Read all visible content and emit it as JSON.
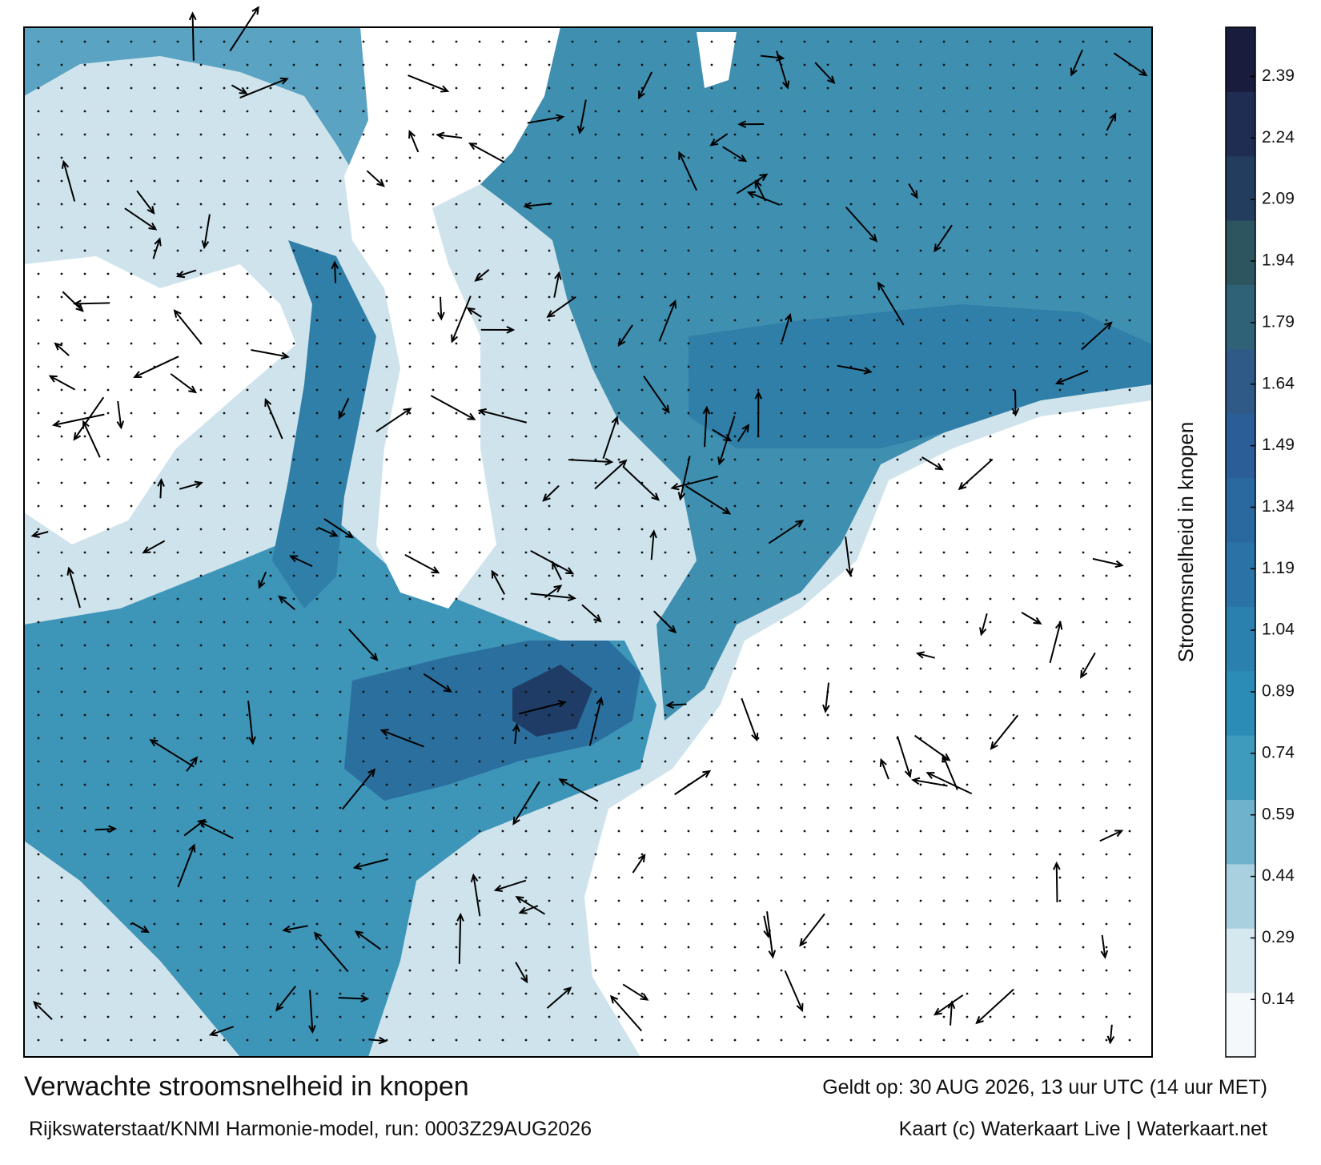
{
  "chart_data": {
    "type": "map",
    "title": "Verwachte stroomsnelheid in knopen",
    "subtitle": "Rijkswaterstaat/KNMI Harmonie-model, run: 0003Z29AUG2026",
    "valid_time": "Geldt op: 30 AUG 2026, 13 uur UTC (14 uur MET)",
    "credit": "Kaart (c) Waterkaart Live | Waterkaart.net",
    "colorbar": {
      "label": "Stroomsnelheid in knopen",
      "lim": [
        0,
        2.51
      ],
      "ticks": [
        0.14,
        0.29,
        0.44,
        0.59,
        0.74,
        0.89,
        1.04,
        1.19,
        1.34,
        1.49,
        1.64,
        1.79,
        1.94,
        2.09,
        2.24,
        2.39
      ],
      "colors": [
        "#f4f8fa",
        "#d6e8ef",
        "#a9d0df",
        "#6fb2cb",
        "#3f9bbd",
        "#2b8db5",
        "#2a81ad",
        "#2a73a6",
        "#2a68a0",
        "#2b5e96",
        "#2f5a88",
        "#2f6177",
        "#2c5560",
        "#233d5e",
        "#1f2d52",
        "#1a1c3d"
      ]
    }
  }
}
